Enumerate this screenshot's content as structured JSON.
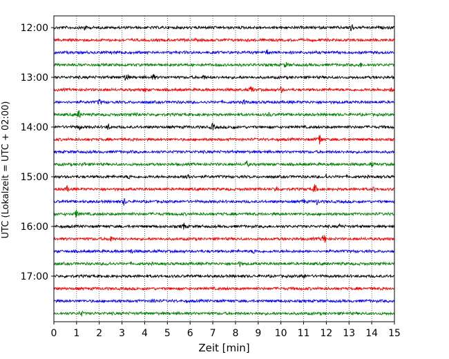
{
  "chart_data": {
    "type": "line",
    "title": "",
    "xlabel": "Zeit  [min]",
    "ylabel": "UTC (Lokalzeit = UTC + 02:00)",
    "xlim": [
      0,
      15
    ],
    "x_ticks": [
      "0",
      "1",
      "2",
      "3",
      "4",
      "5",
      "6",
      "7",
      "8",
      "9",
      "10",
      "11",
      "12",
      "13",
      "14",
      "15"
    ],
    "y_ticks": [
      "12:00",
      "13:00",
      "14:00",
      "15:00",
      "16:00",
      "17:00"
    ],
    "grid": "vertical dotted at each minute",
    "colors": [
      "#000000",
      "#ff0000",
      "#0000ff",
      "#008000"
    ],
    "traces": [
      {
        "start": "12:00",
        "color": "#000000",
        "events": [
          [
            1.35,
            5
          ],
          [
            13.1,
            8
          ]
        ]
      },
      {
        "start": "12:15",
        "color": "#ff0000",
        "events": []
      },
      {
        "start": "12:30",
        "color": "#0000ff",
        "events": [
          [
            3.1,
            4
          ],
          [
            9.4,
            4
          ]
        ]
      },
      {
        "start": "12:45",
        "color": "#008000",
        "events": [
          [
            10.2,
            5
          ],
          [
            13.5,
            4
          ]
        ]
      },
      {
        "start": "13:00",
        "color": "#000000",
        "events": [
          [
            3.2,
            9
          ],
          [
            4.4,
            5
          ],
          [
            6.6,
            4
          ]
        ]
      },
      {
        "start": "13:15",
        "color": "#ff0000",
        "events": [
          [
            4.0,
            4
          ],
          [
            8.7,
            7
          ],
          [
            10.0,
            5
          ],
          [
            14.9,
            5
          ]
        ]
      },
      {
        "start": "13:30",
        "color": "#0000ff",
        "events": [
          [
            2.0,
            5
          ],
          [
            8.4,
            4
          ]
        ]
      },
      {
        "start": "13:45",
        "color": "#008000",
        "events": [
          [
            1.1,
            7
          ],
          [
            3.7,
            4
          ],
          [
            9.5,
            4
          ]
        ]
      },
      {
        "start": "14:00",
        "color": "#000000",
        "events": [
          [
            1.1,
            5
          ],
          [
            2.4,
            5
          ],
          [
            7.0,
            6
          ],
          [
            7.9,
            4
          ]
        ]
      },
      {
        "start": "14:15",
        "color": "#ff0000",
        "events": [
          [
            11.7,
            9
          ]
        ]
      },
      {
        "start": "14:30",
        "color": "#0000ff",
        "events": []
      },
      {
        "start": "14:45",
        "color": "#008000",
        "events": [
          [
            1.3,
            4
          ],
          [
            8.5,
            5
          ],
          [
            14.0,
            4
          ]
        ]
      },
      {
        "start": "15:00",
        "color": "#000000",
        "events": [
          [
            3.3,
            4
          ],
          [
            5.9,
            9
          ],
          [
            12.0,
            4
          ]
        ]
      },
      {
        "start": "15:15",
        "color": "#ff0000",
        "events": [
          [
            0.6,
            5
          ],
          [
            9.8,
            5
          ],
          [
            11.5,
            8
          ],
          [
            14.1,
            4
          ]
        ]
      },
      {
        "start": "15:30",
        "color": "#0000ff",
        "events": [
          [
            3.1,
            6
          ],
          [
            11.0,
            4
          ],
          [
            11.6,
            5
          ]
        ]
      },
      {
        "start": "15:45",
        "color": "#008000",
        "events": [
          [
            1.0,
            7
          ]
        ]
      },
      {
        "start": "16:00",
        "color": "#000000",
        "events": [
          [
            5.7,
            7
          ],
          [
            12.6,
            4
          ]
        ]
      },
      {
        "start": "16:15",
        "color": "#ff0000",
        "events": [
          [
            2.5,
            6
          ],
          [
            11.9,
            9
          ]
        ]
      },
      {
        "start": "16:30",
        "color": "#0000ff",
        "events": [
          [
            3.4,
            4
          ],
          [
            8.8,
            4
          ]
        ]
      },
      {
        "start": "16:45",
        "color": "#008000",
        "events": [
          [
            2.4,
            4
          ],
          [
            8.2,
            4
          ]
        ]
      },
      {
        "start": "17:00",
        "color": "#000000",
        "events": [
          [
            11.0,
            5
          ]
        ]
      },
      {
        "start": "17:15",
        "color": "#ff0000",
        "events": []
      },
      {
        "start": "17:30",
        "color": "#0000ff",
        "events": [
          [
            4.4,
            4
          ]
        ]
      },
      {
        "start": "17:45",
        "color": "#008000",
        "events": [
          [
            1.2,
            5
          ]
        ]
      }
    ]
  }
}
